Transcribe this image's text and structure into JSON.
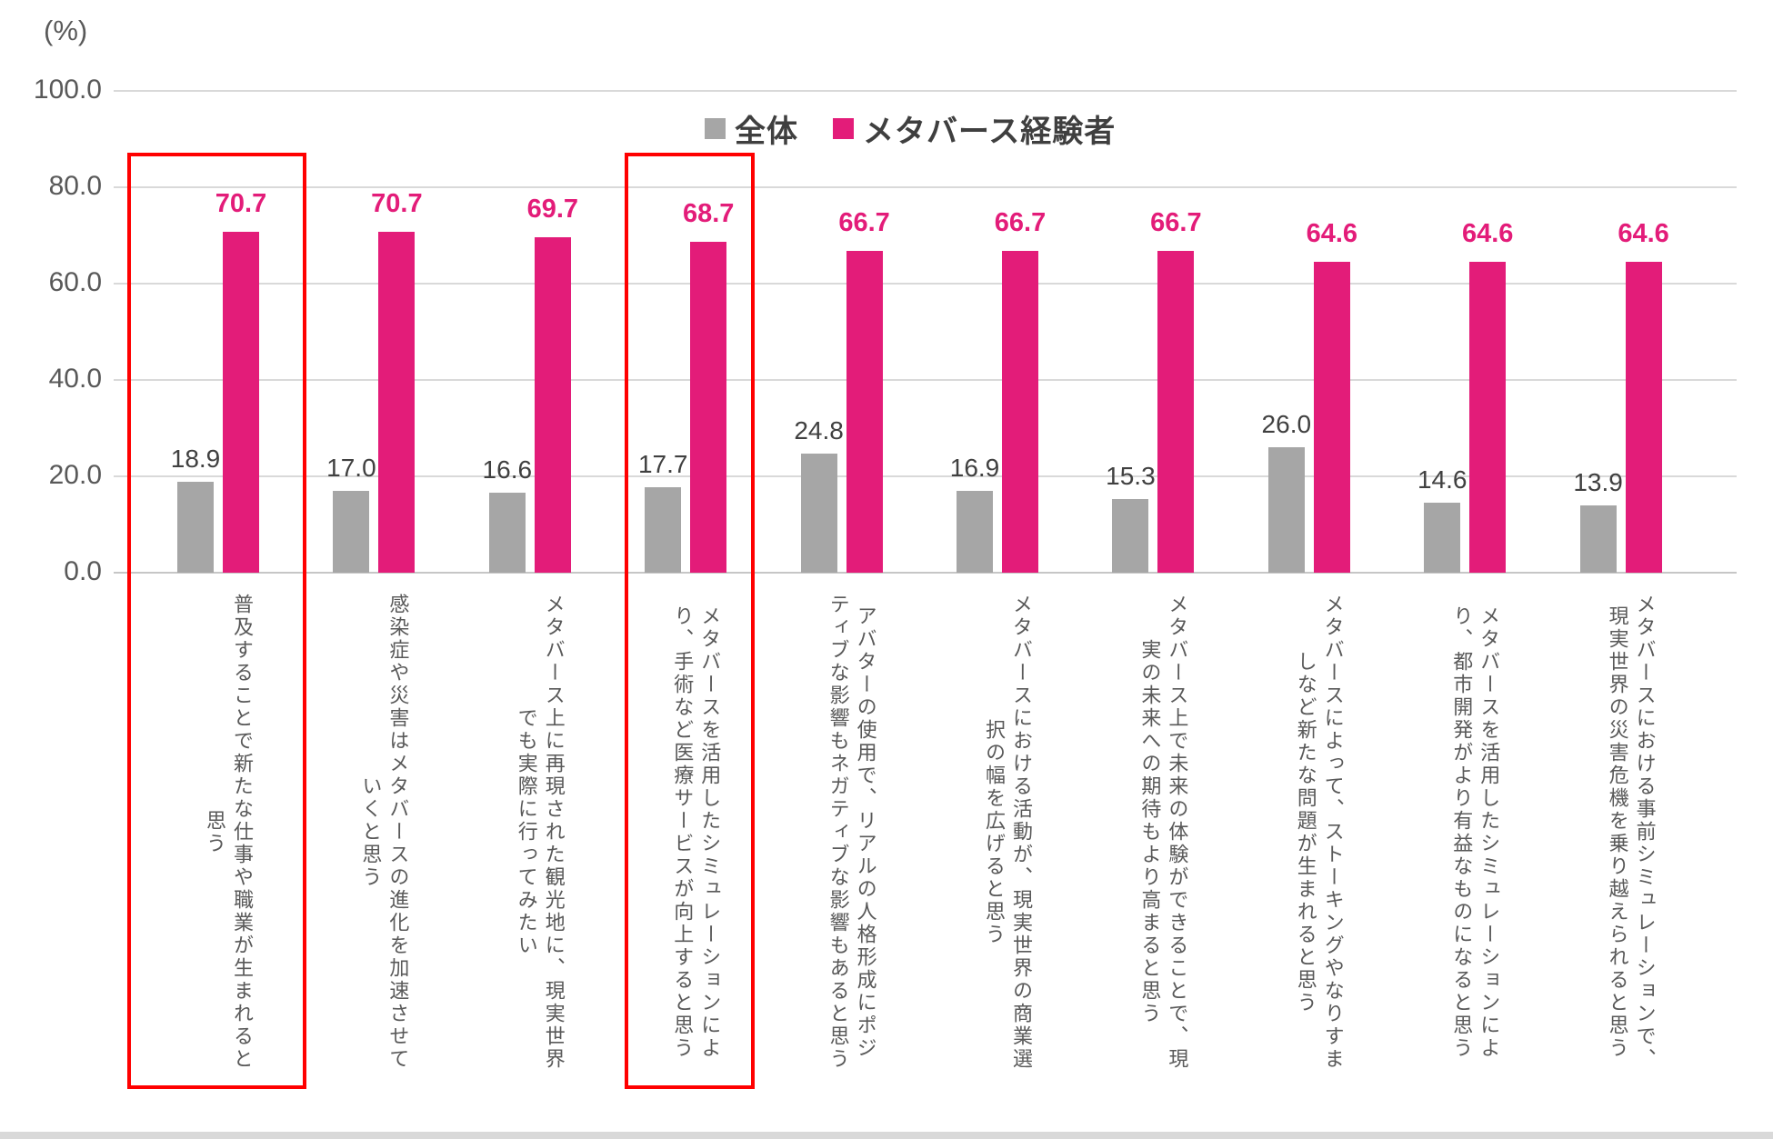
{
  "chart_data": {
    "type": "bar",
    "unit_label": "(%)",
    "y_axis": {
      "tick_labels": [
        "100.0",
        "80.0",
        "60.0",
        "40.0",
        "20.0",
        "0.0"
      ],
      "tick_values": [
        100,
        80,
        60,
        40,
        20,
        0
      ],
      "min": 0,
      "max": 100,
      "grid": true
    },
    "legend_position": "top-center",
    "series": [
      {
        "name": "全体",
        "color": "#A6A6A6",
        "values": [
          18.9,
          17.0,
          16.6,
          17.7,
          24.8,
          16.9,
          15.3,
          26.0,
          14.6,
          13.9
        ]
      },
      {
        "name": "メタバース経験者",
        "color": "#E31C79",
        "values": [
          70.7,
          70.7,
          69.7,
          68.7,
          66.7,
          66.7,
          66.7,
          64.6,
          64.6,
          64.6
        ]
      }
    ],
    "category_label_lines": [
      [
        "普及することで新たな仕事や職業が生まれると",
        "思う"
      ],
      [
        "感染症や災害はメタバースの進化を加速させて",
        "いくと思う"
      ],
      [
        "メタバース上に再現された観光地に、現実世界",
        "でも実際に行ってみたい"
      ],
      [
        "メタバースを活用したシミュレーションによ",
        "り、手術など医療サービスが向上すると思う"
      ],
      [
        "アバターの使用で、リアルの人格形成にポジ",
        "ティブな影響もネガティブな影響もあると思う"
      ],
      [
        "メタバースにおける活動が、現実世界の商業選",
        "択の幅を広げると思う"
      ],
      [
        "メタバース上で未来の体験ができることで、現",
        "実の未来への期待もより高まると思う"
      ],
      [
        "メタバースによって、ストーキングやなりすま",
        "しなど新たな問題が生まれると思う"
      ],
      [
        "メタバースを活用したシミュレーションによ",
        "り、都市開発がより有益なものになると思う"
      ],
      [
        "メタバースにおける事前シミュレーションで、",
        "現実世界の災害危機を乗り越えられると思う"
      ]
    ],
    "highlighted_category_indices": [
      0,
      3
    ],
    "highlight_color": "#FF0000",
    "text_colors": {
      "axis": "#595959",
      "value_label": "#404040",
      "legend": "#3F3F3F"
    }
  }
}
